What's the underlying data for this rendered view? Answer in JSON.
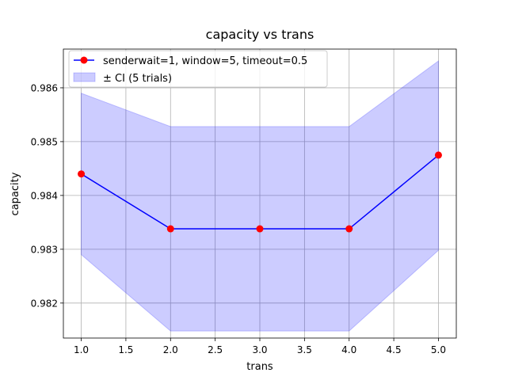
{
  "chart_data": {
    "type": "line",
    "title": "capacity vs trans",
    "xlabel": "trans",
    "ylabel": "capacity",
    "xlim": [
      0.8,
      5.2
    ],
    "ylim": [
      0.98135,
      0.98672
    ],
    "x_ticks": [
      1.0,
      1.5,
      2.0,
      2.5,
      3.0,
      3.5,
      4.0,
      4.5,
      5.0
    ],
    "x_tick_labels": [
      "1.0",
      "1.5",
      "2.0",
      "2.5",
      "3.0",
      "3.5",
      "4.0",
      "4.5",
      "5.0"
    ],
    "y_ticks": [
      0.982,
      0.983,
      0.984,
      0.985,
      0.986
    ],
    "y_tick_labels": [
      "0.982",
      "0.983",
      "0.984",
      "0.985",
      "0.986"
    ],
    "grid": true,
    "legend_position": "top-left",
    "series": [
      {
        "name": "senderwait=1, window=5, timeout=0.5",
        "x": [
          1,
          2,
          3,
          4,
          5
        ],
        "y": [
          0.9844,
          0.98338,
          0.98338,
          0.98338,
          0.98475
        ],
        "line_color": "#0000ff",
        "marker_color": "#ff0000"
      }
    ],
    "confidence_band": {
      "name": "± CI (5 trials)",
      "x": [
        1,
        2,
        3,
        4,
        5
      ],
      "lower": [
        0.9829,
        0.98148,
        0.98148,
        0.98148,
        0.98298
      ],
      "upper": [
        0.9859,
        0.98528,
        0.98528,
        0.98528,
        0.9865
      ],
      "fill_color": "#0000ff",
      "fill_opacity": 0.2
    }
  }
}
